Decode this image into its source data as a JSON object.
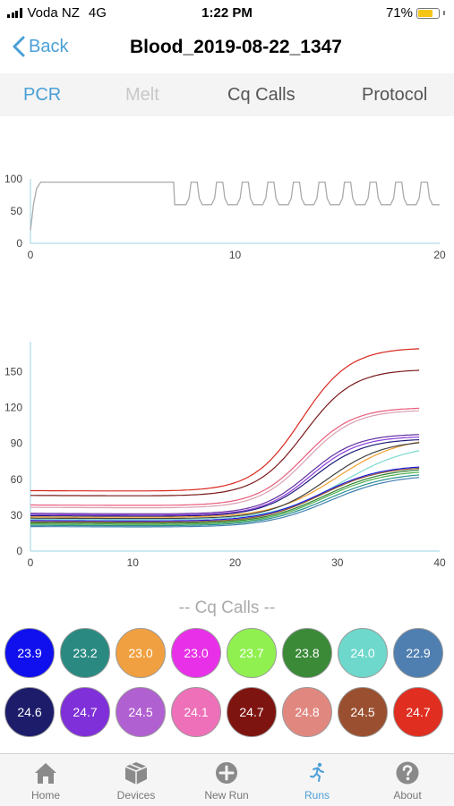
{
  "status": {
    "carrier": "Voda NZ",
    "network": "4G",
    "time": "1:22 PM",
    "battery": "71%",
    "battery_level": 0.71
  },
  "nav": {
    "back_label": "Back",
    "title": "Blood_2019-08-22_1347"
  },
  "tabs": [
    {
      "label": "PCR",
      "state": "active"
    },
    {
      "label": "Melt",
      "state": "disabled"
    },
    {
      "label": "Cq Calls",
      "state": "normal"
    },
    {
      "label": "Protocol",
      "state": "normal"
    }
  ],
  "chart_data": [
    {
      "type": "line",
      "x_ticks": [
        "0",
        "10",
        "20"
      ],
      "y_ticks": [
        "0",
        "50",
        "100"
      ],
      "xlim": [
        0,
        20
      ],
      "ylim": [
        0,
        100
      ],
      "series": [
        {
          "color": "#aaaaaa",
          "x": [
            0,
            0.15,
            0.3,
            0.5,
            0.7,
            7.0,
            7.05,
            7.6,
            7.75,
            7.85,
            8.15,
            8.25,
            8.4,
            8.85,
            9.0,
            9.1,
            9.4,
            9.5,
            9.65,
            10.1,
            10.25,
            10.35,
            10.65,
            10.75,
            10.9,
            11.35,
            11.5,
            11.6,
            11.9,
            12.0,
            12.15,
            12.6,
            12.75,
            12.85,
            13.15,
            13.25,
            13.4,
            13.85,
            14.0,
            14.1,
            14.4,
            14.5,
            14.65,
            15.1,
            15.25,
            15.35,
            15.65,
            15.75,
            15.9,
            16.35,
            16.5,
            16.6,
            16.9,
            17.0,
            17.15,
            17.6,
            17.75,
            17.85,
            18.15,
            18.25,
            18.4,
            18.85,
            19.0,
            19.1,
            19.4,
            19.5,
            19.65,
            20.0
          ],
          "y": [
            20,
            60,
            85,
            95,
            95,
            95,
            60,
            60,
            70,
            95,
            95,
            70,
            60,
            60,
            70,
            95,
            95,
            70,
            60,
            60,
            70,
            95,
            95,
            70,
            60,
            60,
            70,
            95,
            95,
            70,
            60,
            60,
            70,
            95,
            95,
            70,
            60,
            60,
            70,
            95,
            95,
            70,
            60,
            60,
            70,
            95,
            95,
            70,
            60,
            60,
            70,
            95,
            95,
            70,
            60,
            60,
            70,
            95,
            95,
            70,
            60,
            60,
            70,
            95,
            95,
            70,
            60,
            60
          ]
        }
      ]
    },
    {
      "type": "line",
      "x_ticks": [
        "0",
        "10",
        "20",
        "30",
        "40"
      ],
      "y_ticks": [
        "0",
        "30",
        "60",
        "90",
        "120",
        "150"
      ],
      "xlim": [
        0,
        40
      ],
      "ylim": [
        0,
        175
      ],
      "series": [
        {
          "color": "#d8281e",
          "base": 49,
          "plateau": 170,
          "mid": 26.5,
          "k": 0.42
        },
        {
          "color": "#7a1a1a",
          "base": 45,
          "plateau": 152,
          "mid": 26.8,
          "k": 0.42
        },
        {
          "color": "#e85c7a",
          "base": 37,
          "plateau": 120,
          "mid": 26.8,
          "k": 0.42
        },
        {
          "color": "#d9a0b0",
          "base": 35,
          "plateau": 118,
          "mid": 27.0,
          "k": 0.42
        },
        {
          "color": "#6030a0",
          "base": 30,
          "plateau": 98,
          "mid": 27.2,
          "k": 0.42
        },
        {
          "color": "#8a3ad8",
          "base": 29,
          "plateau": 96,
          "mid": 27.4,
          "k": 0.42
        },
        {
          "color": "#1a1a78",
          "base": 28,
          "plateau": 94,
          "mid": 27.6,
          "k": 0.4
        },
        {
          "color": "#f0a030",
          "base": 27,
          "plateau": 96,
          "mid": 30.0,
          "k": 0.32
        },
        {
          "color": "#404040",
          "base": 26,
          "plateau": 93,
          "mid": 29.0,
          "k": 0.36
        },
        {
          "color": "#7ad8cf",
          "base": 25,
          "plateau": 90,
          "mid": 30.5,
          "k": 0.3
        },
        {
          "color": "#1a1ae0",
          "base": 24,
          "plateau": 72,
          "mid": 28.5,
          "k": 0.34
        },
        {
          "color": "#8a5030",
          "base": 23,
          "plateau": 71,
          "mid": 28.5,
          "k": 0.34
        },
        {
          "color": "#308030",
          "base": 22,
          "plateau": 70,
          "mid": 28.8,
          "k": 0.33
        },
        {
          "color": "#50b050",
          "base": 21,
          "plateau": 68,
          "mid": 28.8,
          "k": 0.33
        },
        {
          "color": "#2a9090",
          "base": 20,
          "plateau": 66,
          "mid": 29.0,
          "k": 0.32
        },
        {
          "color": "#4080b0",
          "base": 19,
          "plateau": 64,
          "mid": 29.2,
          "k": 0.32
        }
      ]
    }
  ],
  "cq": {
    "title": "-- Cq Calls --",
    "calls": [
      {
        "value": "23.9",
        "color": "#1010ee"
      },
      {
        "value": "23.2",
        "color": "#2a8a82"
      },
      {
        "value": "23.0",
        "color": "#f0a040"
      },
      {
        "value": "23.0",
        "color": "#e830e8"
      },
      {
        "value": "23.7",
        "color": "#90f050"
      },
      {
        "value": "23.8",
        "color": "#3a8a38"
      },
      {
        "value": "24.0",
        "color": "#6ed8cc"
      },
      {
        "value": "22.9",
        "color": "#4f7fb0"
      },
      {
        "value": "24.6",
        "color": "#1c1c6a"
      },
      {
        "value": "24.7",
        "color": "#8030d8"
      },
      {
        "value": "24.5",
        "color": "#b060d0"
      },
      {
        "value": "24.1",
        "color": "#ee70b8"
      },
      {
        "value": "24.7",
        "color": "#7e1410"
      },
      {
        "value": "24.8",
        "color": "#e08880"
      },
      {
        "value": "24.5",
        "color": "#9a5030"
      },
      {
        "value": "24.7",
        "color": "#e02e20"
      }
    ]
  },
  "tabbar": [
    {
      "label": "Home",
      "icon": "house-icon"
    },
    {
      "label": "Devices",
      "icon": "box-icon"
    },
    {
      "label": "New Run",
      "icon": "plus-circle-icon"
    },
    {
      "label": "Runs",
      "icon": "runner-icon",
      "active": true
    },
    {
      "label": "About",
      "icon": "question-circle-icon"
    }
  ]
}
